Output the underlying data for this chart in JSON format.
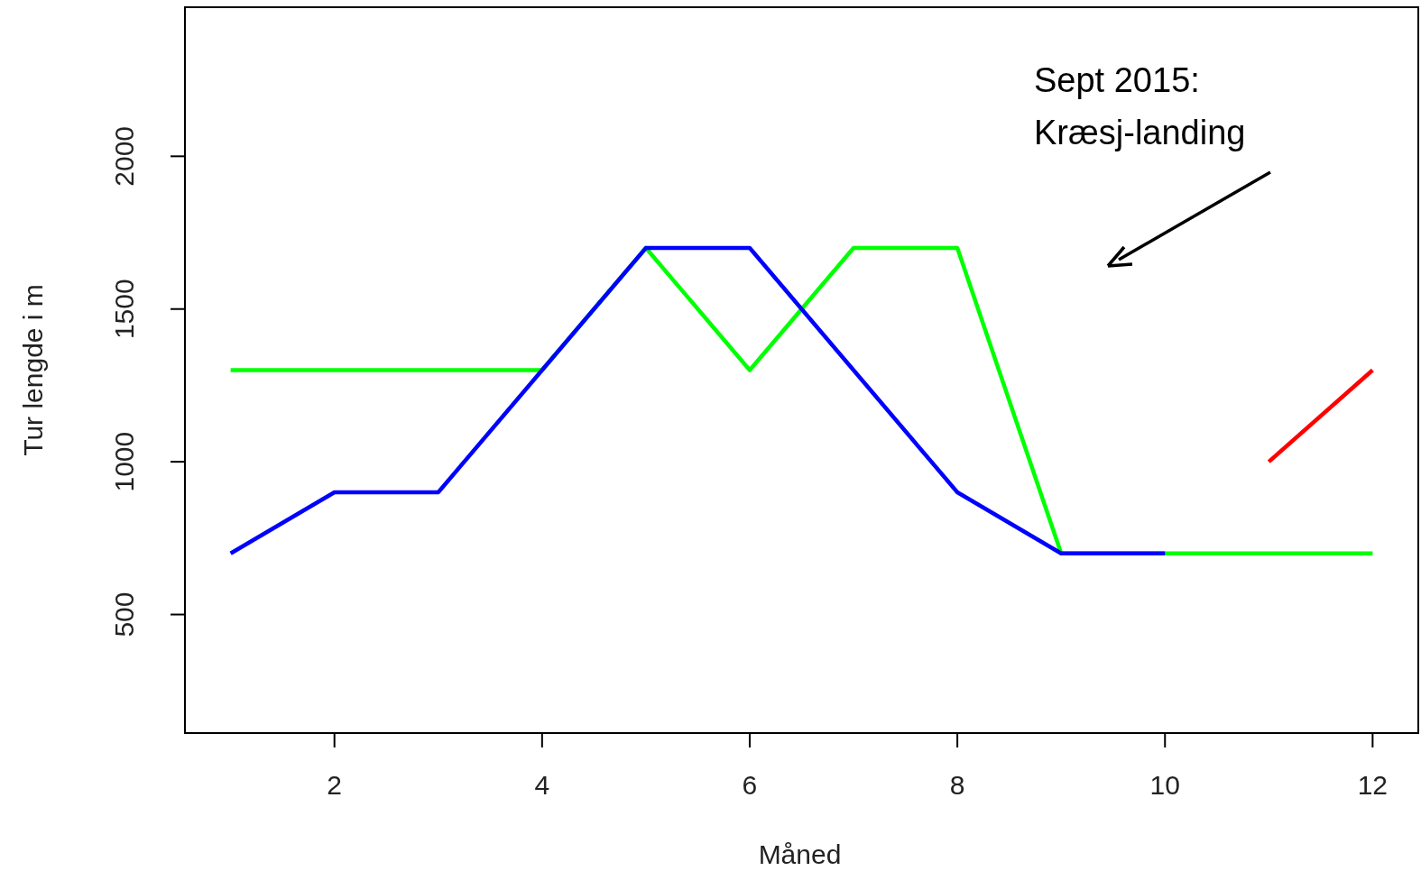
{
  "chart_data": {
    "type": "line",
    "xlabel": "Måned",
    "ylabel": "Tur lengde i m",
    "xlim": [
      0.56,
      12.44
    ],
    "xticks": [
      2,
      4,
      6,
      8,
      10,
      12
    ],
    "ylim": [
      112,
      2488
    ],
    "yticks": [
      500,
      1000,
      1500,
      2000
    ],
    "grid": false,
    "marker": "none",
    "line_style": "solid",
    "annotations": [
      "Sept 2015:\nKræsj-landing"
    ],
    "series": [
      {
        "color": "#00ff00",
        "x": [
          1,
          2,
          3,
          4,
          5,
          6,
          7,
          8,
          9,
          10,
          11,
          12
        ],
        "values": [
          1300,
          1300,
          1300,
          1300,
          1700,
          1300,
          1700,
          1700,
          700,
          700,
          700,
          700
        ]
      },
      {
        "color": "#0000ff",
        "x": [
          1,
          2,
          3,
          4,
          5,
          6,
          7,
          8,
          9,
          10
        ],
        "values": [
          700,
          900,
          900,
          1300,
          1700,
          1700,
          1300,
          900,
          700,
          700
        ]
      },
      {
        "color": "#ff0000",
        "x": [
          11,
          12
        ],
        "values": [
          1000,
          1300
        ]
      }
    ]
  }
}
